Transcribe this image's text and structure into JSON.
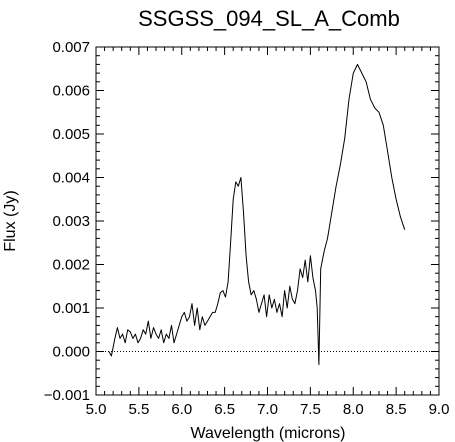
{
  "chart_data": {
    "type": "line",
    "title": "SSGSS_094_SL_A_Comb",
    "xlabel": "Wavelength (microns)",
    "ylabel": "Flux (Jy)",
    "xlim": [
      5.0,
      9.0
    ],
    "ylim": [
      -0.001,
      0.007
    ],
    "x_ticks": [
      "5.0",
      "5.5",
      "6.0",
      "6.5",
      "7.0",
      "7.5",
      "8.0",
      "8.5",
      "9.0"
    ],
    "y_ticks": [
      "−0.001",
      "0.000",
      "0.001",
      "0.002",
      "0.003",
      "0.004",
      "0.005",
      "0.006",
      "0.007"
    ],
    "x_tick_values": [
      5.0,
      5.5,
      6.0,
      6.5,
      7.0,
      7.5,
      8.0,
      8.5,
      9.0
    ],
    "y_tick_values": [
      -0.001,
      0.0,
      0.001,
      0.002,
      0.003,
      0.004,
      0.005,
      0.006,
      0.007
    ],
    "reference_line": {
      "y": 0.0,
      "style": "dotted"
    },
    "grid": false,
    "series": [
      {
        "x": [
          5.15,
          5.18,
          5.22,
          5.25,
          5.28,
          5.31,
          5.34,
          5.37,
          5.4,
          5.43,
          5.46,
          5.49,
          5.52,
          5.55,
          5.58,
          5.61,
          5.64,
          5.67,
          5.7,
          5.73,
          5.76,
          5.79,
          5.82,
          5.85,
          5.88,
          5.91,
          5.94,
          5.97,
          6.0,
          6.03,
          6.06,
          6.09,
          6.12,
          6.15,
          6.18,
          6.21,
          6.24,
          6.27,
          6.3,
          6.33,
          6.36,
          6.39,
          6.42,
          6.45,
          6.48,
          6.51,
          6.54,
          6.57,
          6.6,
          6.63,
          6.66,
          6.69,
          6.72,
          6.75,
          6.78,
          6.81,
          6.84,
          6.87,
          6.9,
          6.93,
          6.96,
          6.99,
          7.02,
          7.05,
          7.08,
          7.11,
          7.14,
          7.17,
          7.2,
          7.23,
          7.26,
          7.29,
          7.32,
          7.35,
          7.38,
          7.41,
          7.44,
          7.47,
          7.5,
          7.53,
          7.56,
          7.58,
          7.6,
          7.62,
          7.66,
          7.7,
          7.75,
          7.8,
          7.85,
          7.9,
          7.95,
          8.0,
          8.05,
          8.1,
          8.15,
          8.2,
          8.25,
          8.3,
          8.35,
          8.4,
          8.45,
          8.5,
          8.55,
          8.6
        ],
        "y": [
          0.0,
          -0.0001,
          0.0003,
          0.00055,
          0.0003,
          0.0004,
          0.0002,
          0.0005,
          0.00045,
          0.0003,
          0.0004,
          0.0002,
          0.0003,
          0.0005,
          0.0004,
          0.0007,
          0.0003,
          0.00055,
          0.0004,
          0.0003,
          0.0005,
          0.0002,
          0.0004,
          0.0003,
          0.0006,
          0.0002,
          0.0004,
          0.0006,
          0.0008,
          0.0009,
          0.0007,
          0.0008,
          0.0011,
          0.0006,
          0.001,
          0.0005,
          0.0008,
          0.0006,
          0.0007,
          0.0008,
          0.0009,
          0.0009,
          0.0011,
          0.00135,
          0.0014,
          0.00125,
          0.0016,
          0.0025,
          0.0035,
          0.0039,
          0.0038,
          0.004,
          0.0032,
          0.0022,
          0.0016,
          0.0013,
          0.0014,
          0.0012,
          0.0009,
          0.0011,
          0.0013,
          0.0008,
          0.0013,
          0.001,
          0.0012,
          0.0009,
          0.0011,
          0.0008,
          0.0014,
          0.001,
          0.0015,
          0.0012,
          0.0011,
          0.0014,
          0.0019,
          0.0017,
          0.0021,
          0.0016,
          0.0022,
          0.0017,
          0.0014,
          0.001,
          -0.0003,
          0.0019,
          0.0023,
          0.0026,
          0.0032,
          0.0038,
          0.0043,
          0.0049,
          0.0058,
          0.0064,
          0.0066,
          0.0064,
          0.0062,
          0.0058,
          0.0056,
          0.0055,
          0.0052,
          0.0046,
          0.004,
          0.0035,
          0.0031,
          0.0028
        ]
      }
    ]
  }
}
